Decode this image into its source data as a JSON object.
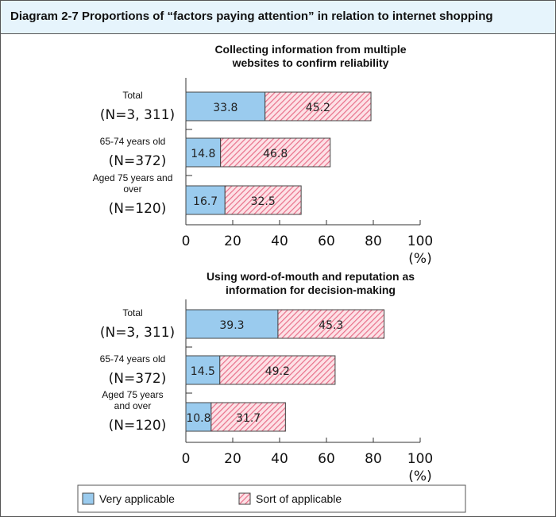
{
  "header": {
    "title": "Diagram 2-7  Proportions of “factors paying attention” in relation to internet shopping"
  },
  "colors": {
    "very": "#9acbee",
    "sort_bg": "#fde1e6",
    "sort_stripe": "#e8708a",
    "header_bg": "#e6f4fc"
  },
  "chart_data": [
    {
      "type": "bar",
      "stacked": true,
      "orientation": "horizontal",
      "title_lines": [
        "Collecting information from multiple",
        "websites to confirm reliability"
      ],
      "categories": [
        {
          "label_lines": [
            "Total"
          ],
          "n": "(N=3, 311)"
        },
        {
          "label_lines": [
            "65-74 years old"
          ],
          "n": "(N=372)"
        },
        {
          "label_lines": [
            "Aged 75 years and",
            "over"
          ],
          "n": "(N=120)"
        }
      ],
      "series": [
        {
          "name": "Very applicable",
          "values": [
            33.8,
            14.8,
            16.7
          ]
        },
        {
          "name": "Sort of applicable",
          "values": [
            45.2,
            46.8,
            32.5
          ]
        }
      ],
      "xlim": [
        0,
        100
      ],
      "xticks": [
        "0",
        "20",
        "40",
        "60",
        "80",
        "100"
      ],
      "xunit": "(%)"
    },
    {
      "type": "bar",
      "stacked": true,
      "orientation": "horizontal",
      "title_lines": [
        "Using word-of-mouth and reputation as",
        "information for decision-making"
      ],
      "categories": [
        {
          "label_lines": [
            "Total"
          ],
          "n": "(N=3, 311)"
        },
        {
          "label_lines": [
            "65-74 years old"
          ],
          "n": "(N=372)"
        },
        {
          "label_lines": [
            "Aged 75 years",
            "and over"
          ],
          "n": "(N=120)"
        }
      ],
      "series": [
        {
          "name": "Very applicable",
          "values": [
            39.3,
            14.5,
            10.8
          ]
        },
        {
          "name": "Sort of applicable",
          "values": [
            45.3,
            49.2,
            31.7
          ]
        }
      ],
      "xlim": [
        0,
        100
      ],
      "xticks": [
        "0",
        "20",
        "40",
        "60",
        "80",
        "100"
      ],
      "xunit": "(%)"
    }
  ],
  "legend": {
    "items": [
      "Very applicable",
      "Sort of applicable"
    ],
    "placement": "bottom"
  }
}
